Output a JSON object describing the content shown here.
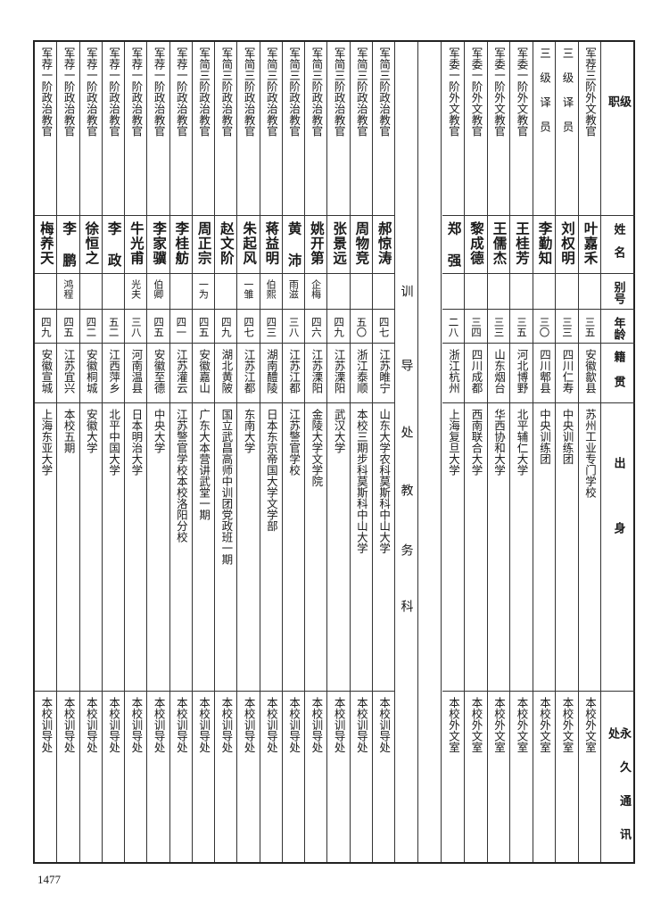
{
  "header": {
    "rank": [
      "级",
      "职"
    ],
    "name": [
      "姓",
      "名"
    ],
    "alias": [
      "别",
      "号"
    ],
    "age": [
      "年",
      "龄"
    ],
    "origin": [
      "籍",
      "贯"
    ],
    "education": [
      "出",
      "身"
    ],
    "address": [
      "永",
      "久",
      "通",
      "讯",
      "处"
    ]
  },
  "section_label": [
    "训",
    "导",
    "处",
    "教",
    "务",
    "科"
  ],
  "foreign_language_staff": [
    {
      "rank": "军荐三阶外文教官",
      "name": "叶嘉禾",
      "alias": "",
      "age": "三五",
      "origin": "安徽歙县",
      "education": "苏州工业专门学校",
      "address": "本校外文室"
    },
    {
      "rank": "三 级 译 员",
      "name": "刘权明",
      "alias": "",
      "age": "三三",
      "origin": "四川仁寿",
      "education": "中央训练团",
      "address": "本校外文室"
    },
    {
      "rank": "三 级 译 员",
      "name": "李勤知",
      "alias": "",
      "age": "三〇",
      "origin": "四川郫县",
      "education": "中央训练团",
      "address": "本校外文室"
    },
    {
      "rank": "军委一阶外文教官",
      "name": "王桂芳",
      "alias": "",
      "age": "三五",
      "origin": "河北博野",
      "education": "北平辅仁大学",
      "address": "本校外文室"
    },
    {
      "rank": "军委一阶外文教官",
      "name": "王儒杰",
      "alias": "",
      "age": "三三",
      "origin": "山东烟台",
      "education": "华西协和大学",
      "address": "本校外文室"
    },
    {
      "rank": "军委一阶外文教官",
      "name": "黎成德",
      "alias": "",
      "age": "三四",
      "origin": "四川成都",
      "education": "西南联合大学",
      "address": "本校外文室"
    },
    {
      "rank": "军委一阶外文教官",
      "name": "郑 强",
      "alias": "",
      "age": "二八",
      "origin": "浙江杭州",
      "education": "上海复旦大学",
      "address": "本校外文室"
    }
  ],
  "political_staff": [
    {
      "rank": "军简三阶政治教官",
      "name": "郝惊涛",
      "alias": "",
      "age": "四七",
      "origin": "江苏睢宁",
      "education": "山东大学农科莫斯科中山大学",
      "address": "本校训导处"
    },
    {
      "rank": "军简三阶政治教官",
      "name": "周物竞",
      "alias": "",
      "age": "五〇",
      "origin": "浙江泰顺",
      "education": "本校三期步科莫斯科中山大学",
      "address": "本校训导处"
    },
    {
      "rank": "军简三阶政治教官",
      "name": "张景远",
      "alias": "",
      "age": "四九",
      "origin": "江苏溧阳",
      "education": "武汉大学",
      "address": "本校训导处"
    },
    {
      "rank": "军简三阶政治教官",
      "name": "姚开第",
      "alias": "企梅",
      "age": "四六",
      "origin": "江苏溧阳",
      "education": "金陵大学文学院",
      "address": "本校训导处"
    },
    {
      "rank": "军简三阶政治教官",
      "name": "黄 沛",
      "alias": "雨滋",
      "age": "三八",
      "origin": "江苏江都",
      "education": "江苏警官学校",
      "address": "本校训导处"
    },
    {
      "rank": "军简三阶政治教官",
      "name": "蒋益明",
      "alias": "伯熙",
      "age": "四三",
      "origin": "湖南醴陵",
      "education": "日本东京帝国大学文学部",
      "address": "本校训导处"
    },
    {
      "rank": "军简三阶政治教官",
      "name": "朱起风",
      "alias": "一雏",
      "age": "四七",
      "origin": "江苏江都",
      "education": "东南大学",
      "address": "本校训导处"
    },
    {
      "rank": "军简三阶政治教官",
      "name": "赵文阶",
      "alias": "",
      "age": "四九",
      "origin": "湖北黄陂",
      "education": "国立武昌高师中训团党政班一期",
      "address": "本校训导处"
    },
    {
      "rank": "军简三阶政治教官",
      "name": "周正宗",
      "alias": "一为",
      "age": "四五",
      "origin": "安徽嘉山",
      "education": "广东大本营讲武堂一期",
      "address": "本校训导处"
    },
    {
      "rank": "军荐一阶政治教官",
      "name": "李桂舫",
      "alias": "",
      "age": "四一",
      "origin": "江苏灌云",
      "education": "江苏警官学校本校洛阳分校",
      "address": "本校训导处"
    },
    {
      "rank": "军荐一阶政治教官",
      "name": "李家骥",
      "alias": "伯卿",
      "age": "四五",
      "origin": "安徽至德",
      "education": "中央大学",
      "address": "本校训导处"
    },
    {
      "rank": "军荐一阶政治教官",
      "name": "牛光甫",
      "alias": "光夫",
      "age": "三八",
      "origin": "河南温县",
      "education": "日本明治大学",
      "address": "本校训导处"
    },
    {
      "rank": "军荐一阶政治教官",
      "name": "李 政",
      "alias": "",
      "age": "五二",
      "origin": "江西萍乡",
      "education": "北平中国大学",
      "address": "本校训导处"
    },
    {
      "rank": "军荐一阶政治教官",
      "name": "徐恒之",
      "alias": "",
      "age": "四二",
      "origin": "安徽桐城",
      "education": "安徽大学",
      "address": "本校训导处"
    },
    {
      "rank": "军荐一阶政治教官",
      "name": "李 鹏",
      "alias": "鸿程",
      "age": "四五",
      "origin": "江苏宜兴",
      "education": "本校五期",
      "address": "本校训导处"
    },
    {
      "rank": "军荐一阶政治教官",
      "name": "梅养天",
      "alias": "",
      "age": "四九",
      "origin": "安徽宣城",
      "education": "上海东亚大学",
      "address": "本校训导处"
    }
  ],
  "page_number": "1477"
}
